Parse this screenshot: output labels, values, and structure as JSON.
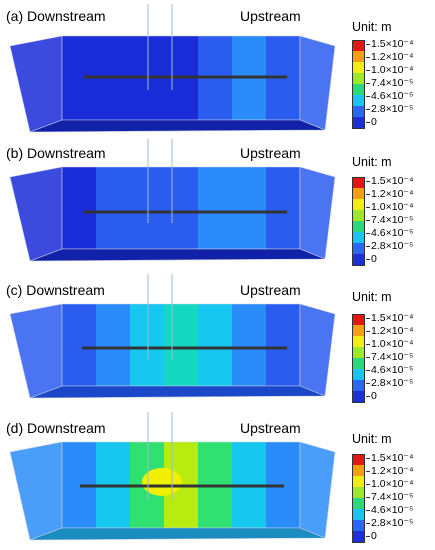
{
  "colors": {
    "blue": "#1a2bd8",
    "blue_mid": "#2a5cf0",
    "sky": "#2a8cf8",
    "cyan": "#16c8f0",
    "teal": "#14d8c0",
    "green": "#30e070",
    "yellowgreen": "#b8ec10",
    "yellow": "#f0f000",
    "orange": "#f09010",
    "red": "#e01010"
  },
  "legend": {
    "title": "Unit: m",
    "ticks": [
      "1.5×10⁻⁴",
      "1.2×10⁻⁴",
      "1.0×10⁻⁴",
      "7.4×10⁻⁵",
      "4.6×10⁻⁵",
      "2.8×10⁻⁵",
      "0"
    ],
    "colors": [
      "#e21612",
      "#f2a012",
      "#f0ee10",
      "#9ee82a",
      "#2ed87a",
      "#18c4f0",
      "#2b68f2",
      "#1e2ed8"
    ]
  },
  "panels": [
    {
      "tag": "(a)",
      "downstream": "Downstream",
      "upstream": "Upstream",
      "bands": [
        "blue",
        "blue",
        "blue",
        "blue",
        "blue_mid",
        "sky",
        "blue_mid"
      ]
    },
    {
      "tag": "(b)",
      "downstream": "Downstream",
      "upstream": "Upstream",
      "bands": [
        "blue",
        "blue_mid",
        "blue_mid",
        "blue_mid",
        "sky",
        "sky",
        "blue_mid"
      ]
    },
    {
      "tag": "(c)",
      "downstream": "Downstream",
      "upstream": "Upstream",
      "bands": [
        "blue_mid",
        "sky",
        "cyan",
        "teal",
        "cyan",
        "sky",
        "blue_mid"
      ]
    },
    {
      "tag": "(d)",
      "downstream": "Downstream",
      "upstream": "Upstream",
      "bands": [
        "sky",
        "cyan",
        "green",
        "yellowgreen",
        "green",
        "cyan",
        "sky"
      ]
    }
  ]
}
